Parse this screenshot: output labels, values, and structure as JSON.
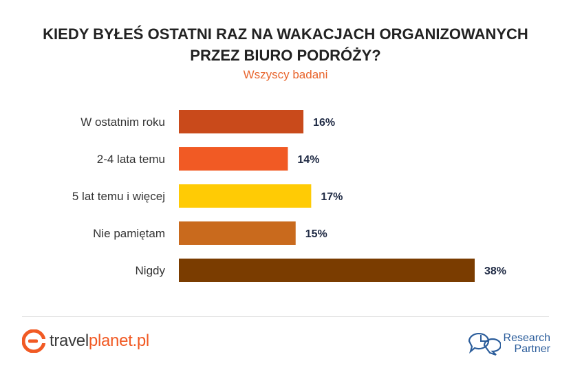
{
  "chart_data": {
    "type": "bar",
    "orientation": "horizontal",
    "title": "KIEDY BYŁEŚ OSTATNI RAZ NA WAKACJACH ORGANIZOWANYCH PRZEZ BIURO PODRÓŻY?",
    "title_lines": [
      "KIEDY BYŁEŚ OSTATNI RAZ NA WAKACJACH ORGANIZOWANYCH",
      "PRZEZ BIURO PODRÓŻY?"
    ],
    "subtitle": "Wszyscy badani",
    "categories": [
      "W ostatnim roku",
      "2-4 lata temu",
      "5 lat temu i więcej",
      "Nie pamiętam",
      "Nigdy"
    ],
    "values": [
      16,
      14,
      17,
      15,
      38
    ],
    "value_labels": [
      "16%",
      "14%",
      "17%",
      "15%",
      "38%"
    ],
    "colors": [
      "#c94a1b",
      "#f15a24",
      "#ffcb05",
      "#c96a1d",
      "#7a3c00"
    ],
    "xlim": [
      0,
      38
    ],
    "grid": false,
    "legend": "none"
  },
  "colors": {
    "subtitle": "#e8642c",
    "title": "#222222",
    "value_text": "#1f2a44"
  },
  "footer": {
    "left_logo": {
      "part1": "travel",
      "part2": "planet.pl",
      "icon": "travelplanet-logo-icon"
    },
    "right_logo": {
      "line1": "Research",
      "line2": "Partner",
      "icon": "research-partner-logo-icon"
    }
  }
}
